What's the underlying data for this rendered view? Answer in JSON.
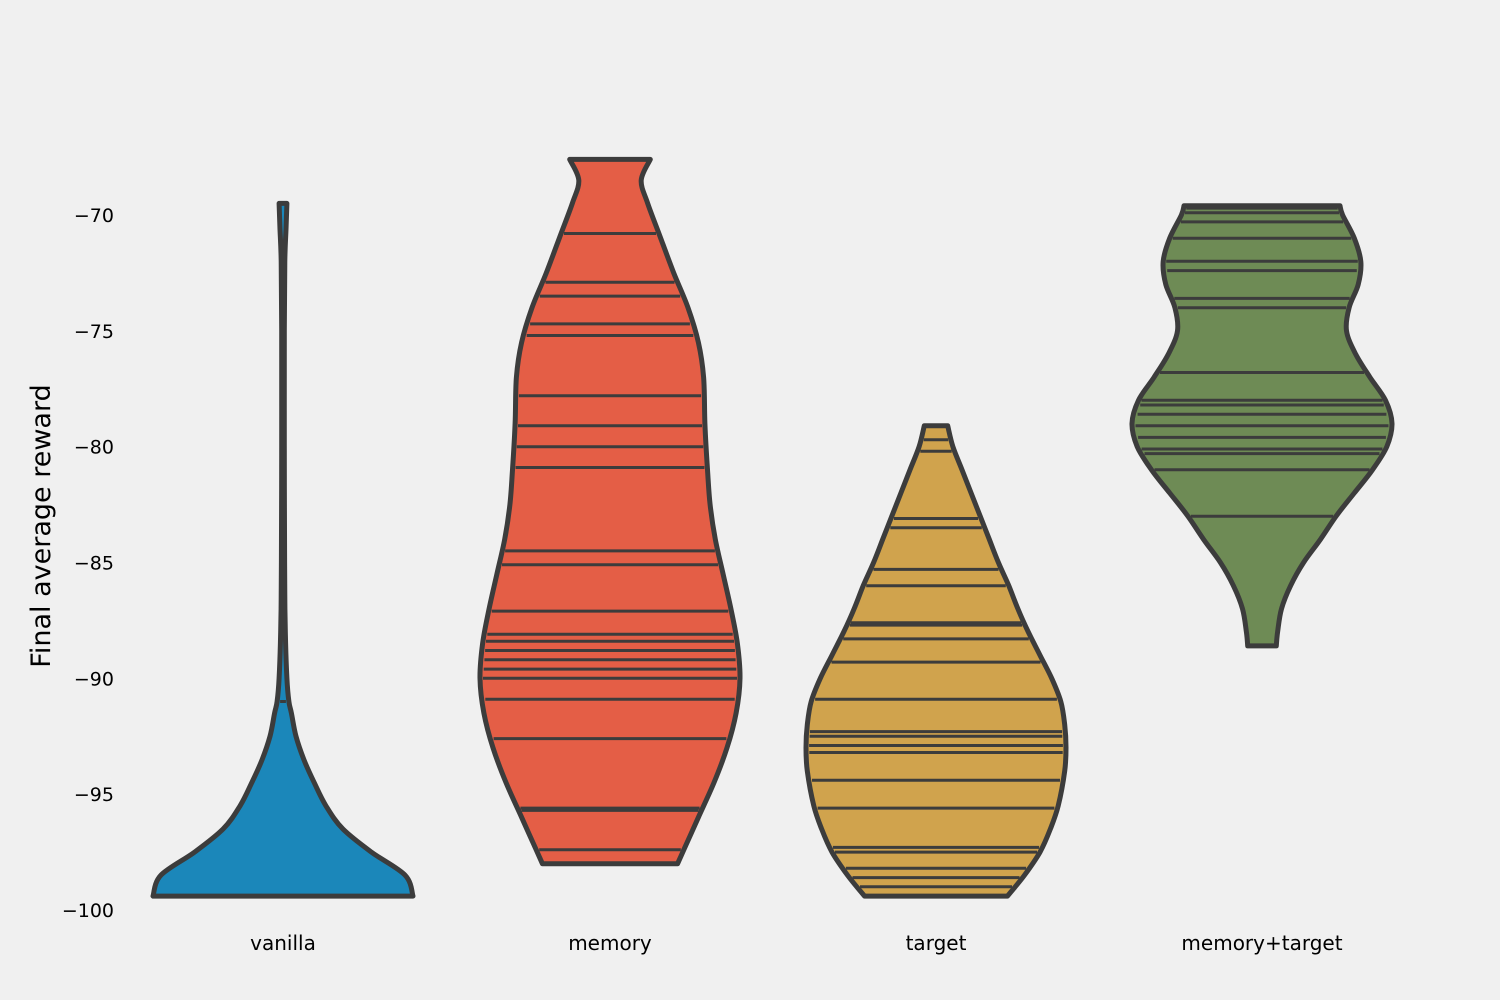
{
  "chart_data": {
    "type": "violin",
    "title": "",
    "xlabel": "",
    "ylabel": "Final average reward",
    "ylim": [
      -100,
      -65.5
    ],
    "yticks": [
      -70,
      -75,
      -80,
      -85,
      -90,
      -95,
      -100
    ],
    "ytick_labels": [
      "−70",
      "−75",
      "−80",
      "−85",
      "−90",
      "−95",
      "−100"
    ],
    "grid": false,
    "inner": "stick",
    "categories": [
      "vanilla",
      "memory",
      "target",
      "memory+target"
    ],
    "series": [
      {
        "category": "vanilla",
        "color": "#1b87ba",
        "min": -99.4,
        "max": -69.5,
        "observations": [
          -91.0,
          -99.4,
          -69.5
        ],
        "density": [
          [
            -99.4,
            1.0
          ],
          [
            -98.5,
            0.94
          ],
          [
            -97.5,
            0.68
          ],
          [
            -96.5,
            0.46
          ],
          [
            -95.5,
            0.33
          ],
          [
            -94.5,
            0.24
          ],
          [
            -93.5,
            0.16
          ],
          [
            -92.5,
            0.1
          ],
          [
            -91.5,
            0.065
          ],
          [
            -91.0,
            0.045
          ],
          [
            -90.0,
            0.03
          ],
          [
            -88.5,
            0.02
          ],
          [
            -87.0,
            0.015
          ],
          [
            -85.0,
            0.012
          ],
          [
            -80.0,
            0.01
          ],
          [
            -75.0,
            0.01
          ],
          [
            -72.0,
            0.014
          ],
          [
            -70.5,
            0.024
          ],
          [
            -69.5,
            0.03
          ]
        ]
      },
      {
        "category": "memory",
        "color": "#e45e46",
        "min": -98.0,
        "max": -67.6,
        "observations": [
          -97.4,
          -95.7,
          -95.6,
          -92.6,
          -90.9,
          -90.0,
          -89.6,
          -89.2,
          -88.8,
          -88.4,
          -88.1,
          -87.1,
          -85.1,
          -84.5,
          -80.9,
          -80.0,
          -79.1,
          -77.8,
          -75.2,
          -74.7,
          -73.5,
          -72.9,
          -70.8
        ],
        "density": [
          [
            -98.0,
            0.52
          ],
          [
            -97.0,
            0.6
          ],
          [
            -96.0,
            0.68
          ],
          [
            -94.5,
            0.8
          ],
          [
            -93.0,
            0.9
          ],
          [
            -91.5,
            0.97
          ],
          [
            -90.0,
            1.0
          ],
          [
            -88.5,
            0.98
          ],
          [
            -87.0,
            0.93
          ],
          [
            -85.5,
            0.87
          ],
          [
            -84.0,
            0.81
          ],
          [
            -82.5,
            0.77
          ],
          [
            -81.0,
            0.75
          ],
          [
            -79.0,
            0.73
          ],
          [
            -77.0,
            0.72
          ],
          [
            -75.5,
            0.68
          ],
          [
            -74.0,
            0.6
          ],
          [
            -72.5,
            0.49
          ],
          [
            -71.0,
            0.39
          ],
          [
            -69.5,
            0.29
          ],
          [
            -68.5,
            0.24
          ],
          [
            -67.6,
            0.31
          ]
        ]
      },
      {
        "category": "target",
        "color": "#d0a34d",
        "min": -99.4,
        "max": -79.1,
        "observations": [
          -99.0,
          -98.6,
          -98.2,
          -97.5,
          -97.3,
          -95.6,
          -94.4,
          -93.2,
          -92.9,
          -92.5,
          -92.3,
          -90.9,
          -89.3,
          -88.3,
          -87.7,
          -87.6,
          -86.0,
          -85.3,
          -83.5,
          -83.1,
          -80.2,
          -79.7
        ],
        "density": [
          [
            -99.4,
            0.55
          ],
          [
            -98.5,
            0.68
          ],
          [
            -97.5,
            0.8
          ],
          [
            -96.5,
            0.88
          ],
          [
            -95.5,
            0.94
          ],
          [
            -94.0,
            0.99
          ],
          [
            -93.0,
            1.0
          ],
          [
            -92.0,
            0.99
          ],
          [
            -91.0,
            0.96
          ],
          [
            -90.0,
            0.89
          ],
          [
            -89.0,
            0.8
          ],
          [
            -88.0,
            0.71
          ],
          [
            -87.0,
            0.63
          ],
          [
            -86.0,
            0.56
          ],
          [
            -85.0,
            0.48
          ],
          [
            -84.0,
            0.41
          ],
          [
            -83.0,
            0.34
          ],
          [
            -82.0,
            0.27
          ],
          [
            -81.0,
            0.2
          ],
          [
            -80.0,
            0.13
          ],
          [
            -79.1,
            0.09
          ]
        ]
      },
      {
        "category": "memory+target",
        "color": "#6e8b55",
        "min": -88.6,
        "max": -69.6,
        "observations": [
          -83.0,
          -81.0,
          -80.3,
          -80.1,
          -79.6,
          -79.1,
          -78.6,
          -78.2,
          -78.0,
          -76.8,
          -74.0,
          -73.6,
          -72.4,
          -72.0,
          -71.0,
          -70.3,
          -69.9,
          -69.7
        ],
        "density": [
          [
            -88.6,
            0.11
          ],
          [
            -88.0,
            0.12
          ],
          [
            -87.0,
            0.15
          ],
          [
            -86.0,
            0.22
          ],
          [
            -85.0,
            0.32
          ],
          [
            -84.0,
            0.45
          ],
          [
            -83.0,
            0.57
          ],
          [
            -82.0,
            0.71
          ],
          [
            -81.0,
            0.85
          ],
          [
            -80.0,
            0.96
          ],
          [
            -79.0,
            1.0
          ],
          [
            -78.0,
            0.95
          ],
          [
            -77.0,
            0.83
          ],
          [
            -76.0,
            0.72
          ],
          [
            -75.0,
            0.65
          ],
          [
            -74.0,
            0.67
          ],
          [
            -73.0,
            0.74
          ],
          [
            -72.0,
            0.76
          ],
          [
            -71.0,
            0.71
          ],
          [
            -70.0,
            0.62
          ],
          [
            -69.6,
            0.6
          ]
        ]
      }
    ]
  }
}
